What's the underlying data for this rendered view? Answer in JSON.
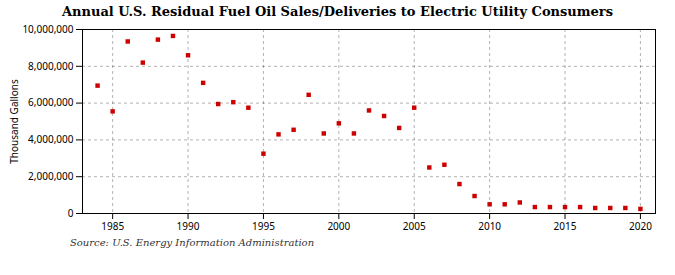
{
  "chart_data": {
    "type": "scatter",
    "title": "Annual U.S. Residual Fuel Oil Sales/Deliveries to Electric Utility Consumers",
    "ylabel": "Thousand Gallons",
    "annotation": "Source: U.S. Energy Information Administration",
    "x": [
      1984,
      1985,
      1986,
      1987,
      1988,
      1989,
      1990,
      1991,
      1992,
      1993,
      1994,
      1995,
      1996,
      1997,
      1998,
      1999,
      2000,
      2001,
      2002,
      2003,
      2004,
      2005,
      2006,
      2007,
      2008,
      2009,
      2010,
      2011,
      2012,
      2013,
      2014,
      2015,
      2016,
      2017,
      2018,
      2019,
      2020
    ],
    "values": [
      6950000,
      5550000,
      9350000,
      8200000,
      9450000,
      9650000,
      8600000,
      7100000,
      5950000,
      6050000,
      5750000,
      3250000,
      4300000,
      4550000,
      6450000,
      4350000,
      4900000,
      4350000,
      5600000,
      5300000,
      4650000,
      5750000,
      2500000,
      2650000,
      1600000,
      950000,
      500000,
      500000,
      600000,
      350000,
      350000,
      350000,
      350000,
      300000,
      300000,
      300000,
      250000
    ],
    "color": "#CC0000",
    "marker": "square",
    "xlim": [
      1983,
      2021
    ],
    "xticks": [
      1985,
      1990,
      1995,
      2000,
      2005,
      2010,
      2015,
      2020
    ],
    "ylim": [
      0,
      10000000
    ],
    "yticks": [
      0,
      {
        "value": 2000000,
        "label": "2,000,000"
      },
      {
        "value": 4000000,
        "label": "4,000,000"
      },
      {
        "value": 6000000,
        "label": "6,000,000"
      },
      {
        "value": 8000000,
        "label": "8,000,000"
      },
      {
        "value": 10000000,
        "label": "10,000,000"
      }
    ],
    "grid": true
  }
}
